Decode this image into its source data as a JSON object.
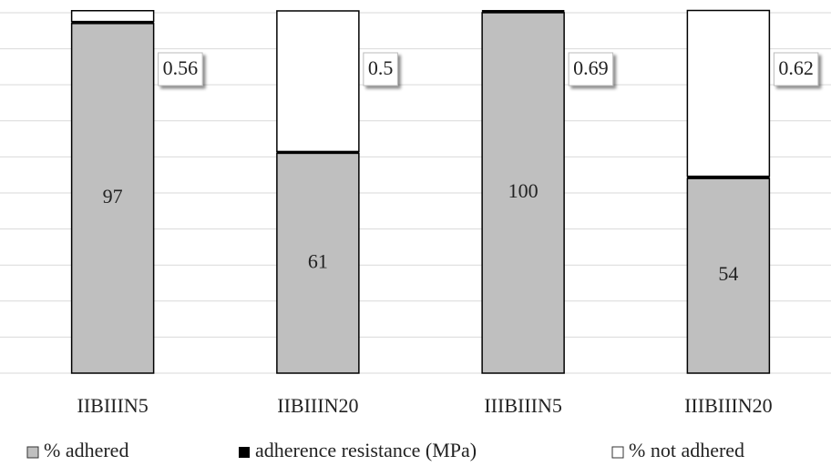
{
  "chart_data": {
    "type": "stacked_bar",
    "categories": [
      "IIBIIIN5",
      "IIBIIIN20",
      "IIIBIIIN5",
      "IIIBIIIN20"
    ],
    "series": [
      {
        "name": "% adhered",
        "color": "#bfbfbf",
        "values": [
          97,
          61,
          100,
          54
        ]
      },
      {
        "name": "adherence resistance (MPa)",
        "color": "#000000",
        "values": [
          0.56,
          0.5,
          0.69,
          0.62
        ]
      },
      {
        "name": "% not adhered",
        "color": "#ffffff",
        "values": [
          3,
          39,
          0,
          46
        ]
      }
    ],
    "ylim": [
      0,
      101
    ],
    "yticks": [
      0,
      10,
      20,
      30,
      40,
      50,
      60,
      70,
      80,
      90,
      100
    ],
    "grid": true
  }
}
